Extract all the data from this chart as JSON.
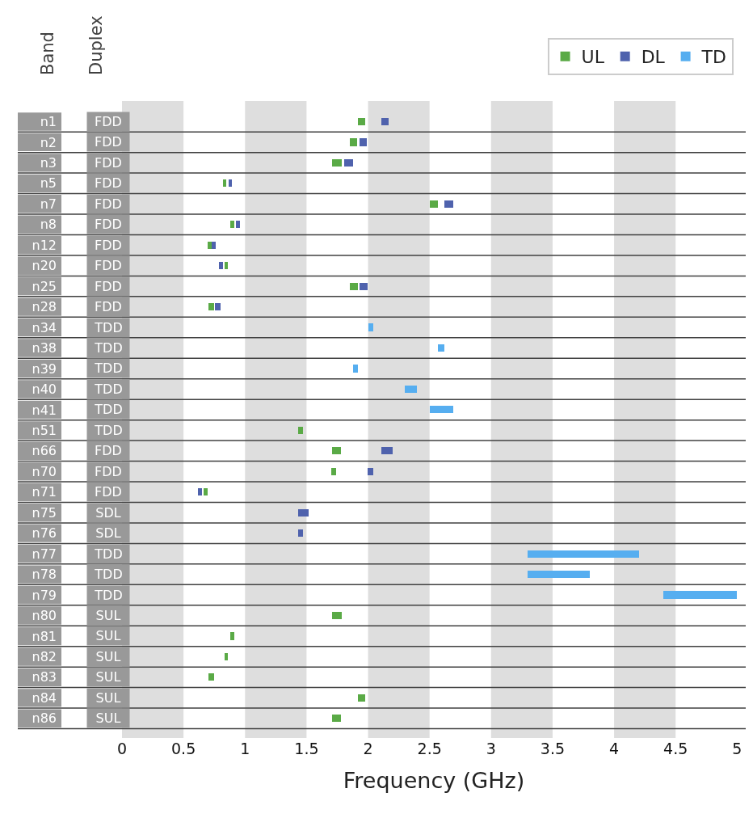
{
  "chart_data": {
    "type": "bar",
    "orientation": "horizontal",
    "ylabel": "Band",
    "y2label": "Duplex",
    "xlabel": "Frequency (GHz)",
    "categories": [
      "n1",
      "n2",
      "n3",
      "n5",
      "n7",
      "n8",
      "n12",
      "n20",
      "n25",
      "n28",
      "n34",
      "n38",
      "n39",
      "n40",
      "n41",
      "n51",
      "n66",
      "n70",
      "n71",
      "n75",
      "n76",
      "n77",
      "n78",
      "n79",
      "n80",
      "n81",
      "n82",
      "n83",
      "n84",
      "n86"
    ],
    "y2_categories": [
      "FDD",
      "FDD",
      "FDD",
      "FDD",
      "FDD",
      "FDD",
      "FDD",
      "FDD",
      "FDD",
      "FDD",
      "TDD",
      "TDD",
      "TDD",
      "TDD",
      "TDD",
      "TDD",
      "FDD",
      "FDD",
      "FDD",
      "SDL",
      "SDL",
      "TDD",
      "TDD",
      "TDD",
      "SUL",
      "SUL",
      "SUL",
      "SUL",
      "SUL",
      "SUL"
    ],
    "xlim": [
      0,
      5.07
    ],
    "xticks": [
      0,
      0.5,
      1,
      1.5,
      2,
      2.5,
      3,
      3.5,
      4,
      4.5,
      5
    ],
    "legend": "top right",
    "grid": "y",
    "bands": [
      {
        "axis": "x",
        "from": 0,
        "to": 0.5,
        "color": "#dedede"
      },
      {
        "axis": "x",
        "from": 1,
        "to": 1.5,
        "color": "#dedede"
      },
      {
        "axis": "x",
        "from": 2,
        "to": 2.5,
        "color": "#dedede"
      },
      {
        "axis": "x",
        "from": 3,
        "to": 3.5,
        "color": "#dedede"
      },
      {
        "axis": "x",
        "from": 4,
        "to": 4.5,
        "color": "#dedede"
      }
    ],
    "series": [
      {
        "name": "UL",
        "color": "#5aaa46",
        "base": [
          1.92,
          1.85,
          1.71,
          0.824,
          2.5,
          0.88,
          0.699,
          0.832,
          1.85,
          0.703,
          null,
          null,
          null,
          null,
          null,
          1.43,
          1.71,
          1.7,
          0.663,
          null,
          null,
          null,
          null,
          null,
          1.71,
          0.88,
          0.832,
          0.703,
          1.92,
          1.71
        ],
        "values": [
          0.06,
          0.06,
          0.075,
          0.025,
          0.07,
          0.035,
          0.03,
          0.03,
          0.065,
          0.045,
          null,
          null,
          null,
          null,
          null,
          0.04,
          0.07,
          0.04,
          0.035,
          null,
          null,
          null,
          null,
          null,
          0.075,
          0.035,
          0.03,
          0.045,
          0.06,
          0.07
        ]
      },
      {
        "name": "DL",
        "color": "#4f62ad",
        "base": [
          2.11,
          1.93,
          1.805,
          0.869,
          2.62,
          0.925,
          0.729,
          0.791,
          1.93,
          0.758,
          null,
          null,
          null,
          null,
          null,
          null,
          2.11,
          1.995,
          0.617,
          1.432,
          1.43,
          null,
          null,
          null,
          null,
          null,
          null,
          null,
          null,
          null
        ],
        "values": [
          0.06,
          0.06,
          0.075,
          0.025,
          0.07,
          0.035,
          0.03,
          0.03,
          0.065,
          0.045,
          null,
          null,
          null,
          null,
          null,
          null,
          0.09,
          0.045,
          0.035,
          0.085,
          0.04,
          null,
          null,
          null,
          null,
          null,
          null,
          null,
          null,
          null
        ]
      },
      {
        "name": "TD",
        "color": "#56aef0",
        "base": [
          null,
          null,
          null,
          null,
          null,
          null,
          null,
          null,
          null,
          null,
          2.0,
          2.57,
          1.88,
          2.3,
          2.5,
          null,
          null,
          null,
          null,
          null,
          null,
          3.3,
          3.3,
          4.4,
          null,
          null,
          null,
          null,
          null,
          null
        ],
        "values": [
          null,
          null,
          null,
          null,
          null,
          null,
          null,
          null,
          null,
          null,
          0.04,
          0.05,
          0.04,
          0.1,
          0.19,
          null,
          null,
          null,
          null,
          null,
          null,
          0.9,
          0.5,
          0.6,
          null,
          null,
          null,
          null,
          null,
          null
        ]
      }
    ]
  }
}
